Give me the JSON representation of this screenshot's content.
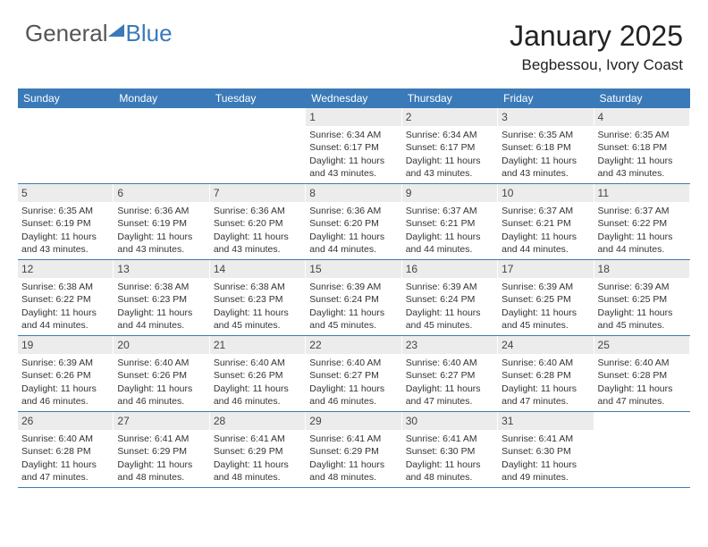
{
  "logo": {
    "general": "General",
    "blue": "Blue"
  },
  "title": "January 2025",
  "subtitle": "Begbessou, Ivory Coast",
  "colors": {
    "header_bg": "#3a7ab8",
    "header_text": "#ffffff",
    "daynum_bg": "#ececec",
    "text": "#222222",
    "row_border": "#3a7ab8"
  },
  "fonts": {
    "title_size": 32,
    "subtitle_size": 17,
    "weekday_size": 12,
    "daynum_size": 12,
    "body_size": 10.5
  },
  "weekdays": [
    "Sunday",
    "Monday",
    "Tuesday",
    "Wednesday",
    "Thursday",
    "Friday",
    "Saturday"
  ],
  "weeks": [
    [
      {
        "n": "",
        "sr": "",
        "ss": "",
        "dl": ""
      },
      {
        "n": "",
        "sr": "",
        "ss": "",
        "dl": ""
      },
      {
        "n": "",
        "sr": "",
        "ss": "",
        "dl": ""
      },
      {
        "n": "1",
        "sr": "Sunrise: 6:34 AM",
        "ss": "Sunset: 6:17 PM",
        "dl": "Daylight: 11 hours and 43 minutes."
      },
      {
        "n": "2",
        "sr": "Sunrise: 6:34 AM",
        "ss": "Sunset: 6:17 PM",
        "dl": "Daylight: 11 hours and 43 minutes."
      },
      {
        "n": "3",
        "sr": "Sunrise: 6:35 AM",
        "ss": "Sunset: 6:18 PM",
        "dl": "Daylight: 11 hours and 43 minutes."
      },
      {
        "n": "4",
        "sr": "Sunrise: 6:35 AM",
        "ss": "Sunset: 6:18 PM",
        "dl": "Daylight: 11 hours and 43 minutes."
      }
    ],
    [
      {
        "n": "5",
        "sr": "Sunrise: 6:35 AM",
        "ss": "Sunset: 6:19 PM",
        "dl": "Daylight: 11 hours and 43 minutes."
      },
      {
        "n": "6",
        "sr": "Sunrise: 6:36 AM",
        "ss": "Sunset: 6:19 PM",
        "dl": "Daylight: 11 hours and 43 minutes."
      },
      {
        "n": "7",
        "sr": "Sunrise: 6:36 AM",
        "ss": "Sunset: 6:20 PM",
        "dl": "Daylight: 11 hours and 43 minutes."
      },
      {
        "n": "8",
        "sr": "Sunrise: 6:36 AM",
        "ss": "Sunset: 6:20 PM",
        "dl": "Daylight: 11 hours and 44 minutes."
      },
      {
        "n": "9",
        "sr": "Sunrise: 6:37 AM",
        "ss": "Sunset: 6:21 PM",
        "dl": "Daylight: 11 hours and 44 minutes."
      },
      {
        "n": "10",
        "sr": "Sunrise: 6:37 AM",
        "ss": "Sunset: 6:21 PM",
        "dl": "Daylight: 11 hours and 44 minutes."
      },
      {
        "n": "11",
        "sr": "Sunrise: 6:37 AM",
        "ss": "Sunset: 6:22 PM",
        "dl": "Daylight: 11 hours and 44 minutes."
      }
    ],
    [
      {
        "n": "12",
        "sr": "Sunrise: 6:38 AM",
        "ss": "Sunset: 6:22 PM",
        "dl": "Daylight: 11 hours and 44 minutes."
      },
      {
        "n": "13",
        "sr": "Sunrise: 6:38 AM",
        "ss": "Sunset: 6:23 PM",
        "dl": "Daylight: 11 hours and 44 minutes."
      },
      {
        "n": "14",
        "sr": "Sunrise: 6:38 AM",
        "ss": "Sunset: 6:23 PM",
        "dl": "Daylight: 11 hours and 45 minutes."
      },
      {
        "n": "15",
        "sr": "Sunrise: 6:39 AM",
        "ss": "Sunset: 6:24 PM",
        "dl": "Daylight: 11 hours and 45 minutes."
      },
      {
        "n": "16",
        "sr": "Sunrise: 6:39 AM",
        "ss": "Sunset: 6:24 PM",
        "dl": "Daylight: 11 hours and 45 minutes."
      },
      {
        "n": "17",
        "sr": "Sunrise: 6:39 AM",
        "ss": "Sunset: 6:25 PM",
        "dl": "Daylight: 11 hours and 45 minutes."
      },
      {
        "n": "18",
        "sr": "Sunrise: 6:39 AM",
        "ss": "Sunset: 6:25 PM",
        "dl": "Daylight: 11 hours and 45 minutes."
      }
    ],
    [
      {
        "n": "19",
        "sr": "Sunrise: 6:39 AM",
        "ss": "Sunset: 6:26 PM",
        "dl": "Daylight: 11 hours and 46 minutes."
      },
      {
        "n": "20",
        "sr": "Sunrise: 6:40 AM",
        "ss": "Sunset: 6:26 PM",
        "dl": "Daylight: 11 hours and 46 minutes."
      },
      {
        "n": "21",
        "sr": "Sunrise: 6:40 AM",
        "ss": "Sunset: 6:26 PM",
        "dl": "Daylight: 11 hours and 46 minutes."
      },
      {
        "n": "22",
        "sr": "Sunrise: 6:40 AM",
        "ss": "Sunset: 6:27 PM",
        "dl": "Daylight: 11 hours and 46 minutes."
      },
      {
        "n": "23",
        "sr": "Sunrise: 6:40 AM",
        "ss": "Sunset: 6:27 PM",
        "dl": "Daylight: 11 hours and 47 minutes."
      },
      {
        "n": "24",
        "sr": "Sunrise: 6:40 AM",
        "ss": "Sunset: 6:28 PM",
        "dl": "Daylight: 11 hours and 47 minutes."
      },
      {
        "n": "25",
        "sr": "Sunrise: 6:40 AM",
        "ss": "Sunset: 6:28 PM",
        "dl": "Daylight: 11 hours and 47 minutes."
      }
    ],
    [
      {
        "n": "26",
        "sr": "Sunrise: 6:40 AM",
        "ss": "Sunset: 6:28 PM",
        "dl": "Daylight: 11 hours and 47 minutes."
      },
      {
        "n": "27",
        "sr": "Sunrise: 6:41 AM",
        "ss": "Sunset: 6:29 PM",
        "dl": "Daylight: 11 hours and 48 minutes."
      },
      {
        "n": "28",
        "sr": "Sunrise: 6:41 AM",
        "ss": "Sunset: 6:29 PM",
        "dl": "Daylight: 11 hours and 48 minutes."
      },
      {
        "n": "29",
        "sr": "Sunrise: 6:41 AM",
        "ss": "Sunset: 6:29 PM",
        "dl": "Daylight: 11 hours and 48 minutes."
      },
      {
        "n": "30",
        "sr": "Sunrise: 6:41 AM",
        "ss": "Sunset: 6:30 PM",
        "dl": "Daylight: 11 hours and 48 minutes."
      },
      {
        "n": "31",
        "sr": "Sunrise: 6:41 AM",
        "ss": "Sunset: 6:30 PM",
        "dl": "Daylight: 11 hours and 49 minutes."
      },
      {
        "n": "",
        "sr": "",
        "ss": "",
        "dl": ""
      }
    ]
  ]
}
